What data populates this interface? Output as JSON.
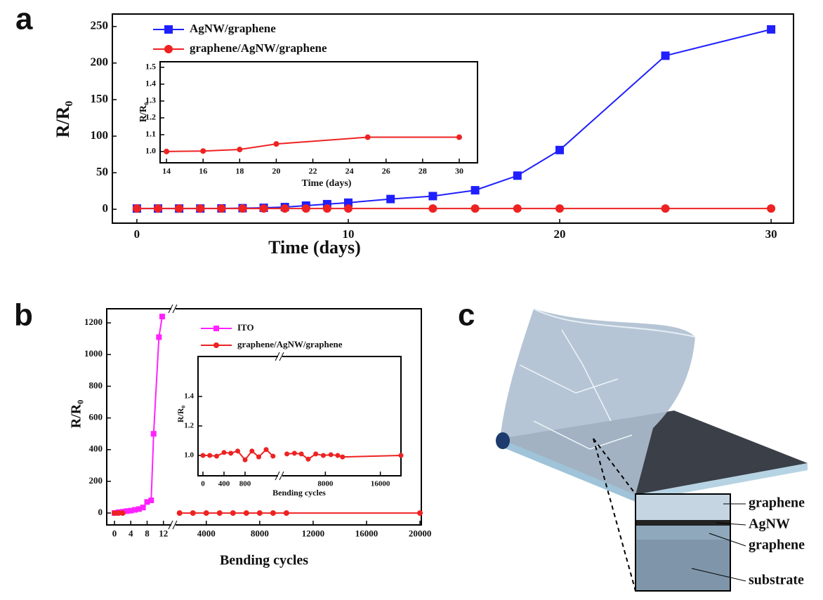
{
  "chart_data": [
    {
      "panel": "a",
      "type": "line",
      "x_label": "Time (days)",
      "y_label": "R/R₀",
      "xlim": [
        -1.16,
        31.06
      ],
      "ylim": [
        -19,
        267
      ],
      "xticks": [
        0,
        10,
        20,
        30
      ],
      "yticks": [
        0,
        50,
        100,
        150,
        200,
        250
      ],
      "legend": "upper left",
      "series": [
        {
          "name": "AgNW/graphene",
          "color": "#1f1fff",
          "marker": "square",
          "x": [
            0,
            1,
            2,
            3,
            4,
            5,
            6,
            7,
            8,
            9,
            10,
            12,
            14,
            16,
            18,
            20,
            25,
            30
          ],
          "values": [
            1,
            1,
            1,
            1,
            1.2,
            1.5,
            2,
            3,
            5,
            7,
            9,
            14,
            18,
            26,
            46,
            81,
            210,
            246
          ]
        },
        {
          "name": "graphene/AgNW/graphene",
          "color": "#ee2222",
          "marker": "circle",
          "x": [
            0,
            1,
            2,
            3,
            4,
            5,
            6,
            7,
            8,
            9,
            10,
            14,
            16,
            18,
            20,
            25,
            30
          ],
          "values": [
            1,
            1,
            1,
            1,
            1,
            1,
            1,
            1,
            1,
            1,
            1,
            1,
            1,
            1,
            1,
            1,
            1
          ]
        }
      ]
    },
    {
      "type": "line",
      "x_label": "Time (days)",
      "y_label": "R/R₀",
      "xlim": [
        13.65,
        31
      ],
      "ylim": [
        0.933,
        1.533
      ],
      "xticks": [
        14,
        16,
        18,
        20,
        22,
        24,
        26,
        28,
        30
      ],
      "yticks": [
        {
          "value": 1,
          "label": "1.0"
        },
        1.1,
        1.2,
        1.3,
        1.4,
        1.5
      ],
      "series": [
        {
          "color": "#ee2222",
          "marker": "circle",
          "x": [
            14,
            16,
            18,
            20,
            25,
            30
          ],
          "values": [
            1.0,
            1.003,
            1.012,
            1.045,
            1.085,
            1.085
          ]
        }
      ]
    },
    {
      "panel": "b",
      "type": "line",
      "x_label": "Bending cycles",
      "y_label": "R/R₀",
      "x_segments": [
        {
          "xlim": [
            -1.9,
            13.6
          ],
          "xticks": [
            0,
            4,
            8,
            12
          ]
        },
        {
          "xlim": [
            1700,
            20100
          ],
          "xticks": [
            4000,
            8000,
            12000,
            16000,
            20000
          ]
        }
      ],
      "ylim": [
        -75,
        1289
      ],
      "yticks": [
        0,
        200,
        400,
        600,
        800,
        1000,
        1200
      ],
      "legend": "upper right",
      "series": [
        {
          "name": "ITO",
          "color": "#ff22ff",
          "marker": "square",
          "x": [
            0,
            1,
            2,
            3,
            4,
            5,
            6,
            7,
            8,
            9,
            9.6,
            10.9,
            11.7
          ],
          "values": [
            0,
            5,
            8,
            12,
            15,
            20,
            25,
            35,
            70,
            80,
            500,
            1110,
            1240
          ]
        },
        {
          "name": "graphene/AgNW/graphene",
          "color": "#ee2222",
          "marker": "circle",
          "x": [
            0,
            1,
            2,
            2000,
            3000,
            4000,
            5000,
            6000,
            7000,
            8000,
            9000,
            10000,
            20000
          ],
          "values": [
            0,
            0,
            0,
            0,
            0,
            0,
            0,
            0,
            0,
            0,
            0,
            0,
            0
          ]
        }
      ]
    },
    {
      "type": "line",
      "x_label": "Bending cycles",
      "y_label": "R/R₀",
      "x_segments": [
        {
          "xlim": [
            -93,
            1413
          ],
          "xticks": [
            0,
            400,
            800
          ]
        },
        {
          "xlim": [
            1730,
            19000
          ],
          "xticks": [
            8000,
            16000
          ]
        }
      ],
      "ylim": [
        0.862,
        1.671
      ],
      "yticks": [
        {
          "value": 1,
          "label": "1.0"
        },
        {
          "value": 1.2,
          "label": "1.2"
        },
        {
          "value": 1.4,
          "label": "1.4"
        }
      ],
      "series": [
        {
          "color": "#ee2222",
          "marker": "circle",
          "x": [
            0,
            130,
            260,
            400,
            530,
            660,
            800,
            930,
            1060,
            1200,
            1330,
            2400,
            3500,
            4500,
            5500,
            6600,
            7700,
            8800,
            9800,
            10500,
            19000
          ],
          "values": [
            1.0,
            1.0,
            0.995,
            1.02,
            1.015,
            1.03,
            0.97,
            1.03,
            0.99,
            1.04,
            0.995,
            1.01,
            1.015,
            1.01,
            0.975,
            1.01,
            1.0,
            1.005,
            1.0,
            0.99,
            1.0
          ]
        }
      ]
    }
  ],
  "diagram": {
    "panel": "c",
    "labels": [
      "graphene",
      "AgNW",
      "graphene",
      "substrate"
    ]
  }
}
